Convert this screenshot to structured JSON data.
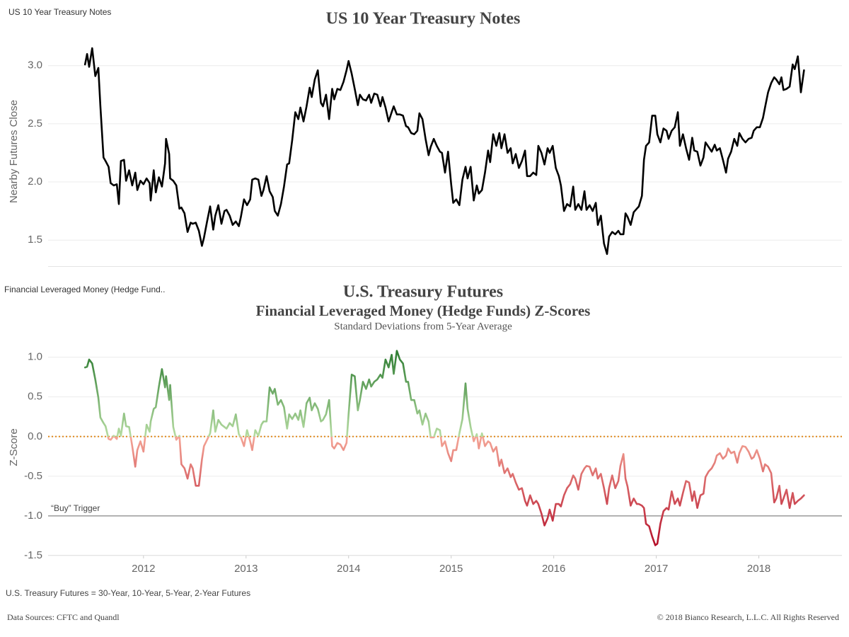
{
  "chart_data": [
    {
      "type": "line",
      "sheet_name": "US 10 Year Treasury Notes",
      "title": "US 10 Year Treasury Notes",
      "ylabel": "Nearby Futures Close",
      "color": "#000000",
      "grid": true,
      "xlim": [
        2011.07,
        2018.81
      ],
      "ylim": [
        1.27,
        3.26
      ],
      "yticks": [
        1.5,
        {
          "value": 2,
          "label": "2.0"
        },
        2.5,
        {
          "value": 3,
          "label": "3.0"
        }
      ],
      "x": [
        2011.43,
        2011.45,
        2011.47,
        2011.5,
        2011.53,
        2011.56,
        2011.58,
        2011.61,
        2011.63,
        2011.66,
        2011.68,
        2011.71,
        2011.74,
        2011.76,
        2011.78,
        2011.81,
        2011.83,
        2011.86,
        2011.89,
        2011.92,
        2011.94,
        2011.97,
        2012.0,
        2012.03,
        2012.06,
        2012.07,
        2012.1,
        2012.12,
        2012.15,
        2012.18,
        2012.21,
        2012.22,
        2012.25,
        2012.26,
        2012.29,
        2012.32,
        2012.35,
        2012.37,
        2012.4,
        2012.43,
        2012.46,
        2012.48,
        2012.51,
        2012.54,
        2012.57,
        2012.59,
        2012.62,
        2012.65,
        2012.68,
        2012.7,
        2012.73,
        2012.76,
        2012.79,
        2012.81,
        2012.84,
        2012.87,
        2012.9,
        2012.93,
        2012.95,
        2012.98,
        2013.01,
        2013.04,
        2013.06,
        2013.09,
        2013.12,
        2013.15,
        2013.17,
        2013.2,
        2013.23,
        2013.26,
        2013.28,
        2013.31,
        2013.34,
        2013.37,
        2013.4,
        2013.42,
        2013.45,
        2013.48,
        2013.51,
        2013.53,
        2013.56,
        2013.59,
        2013.62,
        2013.64,
        2013.67,
        2013.7,
        2013.73,
        2013.75,
        2013.78,
        2013.81,
        2013.84,
        2013.86,
        2013.89,
        2013.92,
        2013.95,
        2013.98,
        2014.0,
        2014.03,
        2014.06,
        2014.09,
        2014.11,
        2014.14,
        2014.17,
        2014.2,
        2014.22,
        2014.25,
        2014.28,
        2014.31,
        2014.33,
        2014.36,
        2014.39,
        2014.42,
        2014.44,
        2014.47,
        2014.5,
        2014.53,
        2014.56,
        2014.58,
        2014.61,
        2014.64,
        2014.67,
        2014.69,
        2014.72,
        2014.75,
        2014.78,
        2014.8,
        2014.83,
        2014.86,
        2014.89,
        2014.91,
        2014.94,
        2014.97,
        2015.0,
        2015.02,
        2015.05,
        2015.08,
        2015.11,
        2015.14,
        2015.16,
        2015.19,
        2015.22,
        2015.25,
        2015.27,
        2015.3,
        2015.33,
        2015.36,
        2015.38,
        2015.41,
        2015.44,
        2015.47,
        2015.49,
        2015.52,
        2015.55,
        2015.58,
        2015.6,
        2015.63,
        2015.66,
        2015.69,
        2015.72,
        2015.74,
        2015.77,
        2015.8,
        2015.83,
        2015.85,
        2015.88,
        2015.91,
        2015.94,
        2015.96,
        2015.99,
        2016.02,
        2016.05,
        2016.07,
        2016.1,
        2016.13,
        2016.16,
        2016.19,
        2016.21,
        2016.24,
        2016.27,
        2016.3,
        2016.32,
        2016.35,
        2016.38,
        2016.41,
        2016.43,
        2016.46,
        2016.49,
        2016.52,
        2016.54,
        2016.57,
        2016.6,
        2016.63,
        2016.65,
        2016.68,
        2016.7,
        2016.72,
        2016.75,
        2016.78,
        2016.81,
        2016.83,
        2016.86,
        2016.88,
        2016.9,
        2016.93,
        2016.96,
        2016.99,
        2017.01,
        2017.04,
        2017.07,
        2017.1,
        2017.12,
        2017.15,
        2017.18,
        2017.21,
        2017.23,
        2017.26,
        2017.29,
        2017.32,
        2017.35,
        2017.37,
        2017.4,
        2017.43,
        2017.46,
        2017.48,
        2017.51,
        2017.54,
        2017.57,
        2017.59,
        2017.62,
        2017.65,
        2017.68,
        2017.7,
        2017.73,
        2017.76,
        2017.79,
        2017.81,
        2017.84,
        2017.87,
        2017.9,
        2017.93,
        2017.95,
        2017.98,
        2018.01,
        2018.04,
        2018.06,
        2018.09,
        2018.12,
        2018.15,
        2018.17,
        2018.2,
        2018.22,
        2018.24,
        2018.27,
        2018.3,
        2018.33,
        2018.35,
        2018.38,
        2018.41,
        2018.44
      ],
      "values": [
        3.01,
        3.1,
        2.99,
        3.15,
        2.91,
        2.98,
        2.65,
        2.21,
        2.18,
        2.13,
        1.99,
        1.97,
        1.98,
        1.81,
        2.18,
        2.19,
        2.01,
        2.1,
        1.97,
        2.08,
        1.93,
        2.01,
        1.98,
        2.03,
        1.99,
        1.84,
        2.1,
        1.91,
        2.04,
        1.96,
        2.16,
        2.37,
        2.24,
        2.03,
        2.01,
        1.97,
        1.77,
        1.78,
        1.73,
        1.57,
        1.65,
        1.64,
        1.65,
        1.58,
        1.45,
        1.52,
        1.66,
        1.79,
        1.59,
        1.71,
        1.8,
        1.64,
        1.75,
        1.76,
        1.71,
        1.63,
        1.66,
        1.62,
        1.7,
        1.85,
        1.8,
        1.85,
        2.02,
        2.03,
        2.02,
        1.88,
        1.93,
        2.05,
        1.92,
        1.87,
        1.75,
        1.71,
        1.81,
        1.96,
        2.15,
        2.16,
        2.36,
        2.6,
        2.54,
        2.64,
        2.52,
        2.65,
        2.81,
        2.73,
        2.88,
        2.96,
        2.68,
        2.65,
        2.75,
        2.54,
        2.8,
        2.71,
        2.8,
        2.79,
        2.86,
        2.96,
        3.04,
        2.93,
        2.8,
        2.66,
        2.75,
        2.71,
        2.7,
        2.75,
        2.68,
        2.76,
        2.75,
        2.65,
        2.73,
        2.64,
        2.52,
        2.6,
        2.65,
        2.58,
        2.58,
        2.57,
        2.48,
        2.47,
        2.42,
        2.41,
        2.44,
        2.59,
        2.54,
        2.37,
        2.23,
        2.3,
        2.37,
        2.31,
        2.26,
        2.25,
        2.08,
        2.26,
        1.98,
        1.82,
        1.85,
        1.8,
        2.02,
        2.13,
        2.03,
        2.13,
        1.84,
        1.97,
        1.9,
        1.93,
        2.08,
        2.27,
        2.17,
        2.41,
        2.31,
        2.42,
        2.29,
        2.41,
        2.25,
        2.29,
        2.16,
        2.24,
        2.12,
        2.18,
        2.27,
        2.05,
        2.05,
        2.08,
        2.06,
        2.31,
        2.25,
        2.15,
        2.29,
        2.25,
        2.31,
        2.12,
        2.05,
        1.97,
        1.75,
        1.81,
        1.79,
        1.96,
        1.76,
        1.81,
        1.76,
        1.92,
        1.76,
        1.8,
        1.75,
        1.82,
        1.63,
        1.71,
        1.47,
        1.38,
        1.53,
        1.57,
        1.55,
        1.58,
        1.55,
        1.55,
        1.73,
        1.7,
        1.63,
        1.74,
        1.77,
        1.79,
        1.88,
        2.19,
        2.31,
        2.34,
        2.57,
        2.57,
        2.41,
        2.34,
        2.46,
        2.44,
        2.37,
        2.44,
        2.47,
        2.6,
        2.31,
        2.41,
        2.29,
        2.19,
        2.38,
        2.27,
        2.26,
        2.14,
        2.21,
        2.34,
        2.3,
        2.26,
        2.32,
        2.27,
        2.29,
        2.19,
        2.08,
        2.2,
        2.26,
        2.37,
        2.31,
        2.42,
        2.37,
        2.34,
        2.37,
        2.38,
        2.44,
        2.47,
        2.47,
        2.55,
        2.64,
        2.77,
        2.85,
        2.9,
        2.88,
        2.84,
        2.9,
        2.79,
        2.8,
        2.82,
        3.01,
        2.97,
        3.08,
        2.77,
        2.96
      ]
    },
    {
      "type": "line",
      "sheet_name": "Financial Leveraged Money (Hedge Fund..",
      "title": "U.S. Treasury Futures",
      "subtitle": "Financial Leveraged Money (Hedge Funds) Z-Scores",
      "description": "Standard Deviations from 5-Year Average",
      "ylabel": "Z-Score",
      "grid": true,
      "color_scale": [
        "#2e7d32",
        "#b6dca2",
        "#f4a596",
        "#b5102a"
      ],
      "xlim": [
        2011.07,
        2018.81
      ],
      "ylim": [
        -1.5,
        1.22
      ],
      "xticks": [
        2012,
        2013,
        2014,
        2015,
        2016,
        2017,
        2018
      ],
      "yticks": [
        -1.5,
        {
          "value": -1,
          "label": "-1.0"
        },
        -0.5,
        {
          "value": 0,
          "label": "0.0"
        },
        0.5,
        {
          "value": 1,
          "label": "1.0"
        }
      ],
      "reference_lines": [
        {
          "value": 0,
          "color": "#e08a1e",
          "style": "dotted"
        },
        {
          "value": -1,
          "color": "#9a9a9a",
          "style": "solid",
          "label": "“Buy” Trigger"
        }
      ],
      "x": [
        2011.43,
        2011.45,
        2011.47,
        2011.5,
        2011.53,
        2011.56,
        2011.58,
        2011.61,
        2011.63,
        2011.66,
        2011.68,
        2011.71,
        2011.74,
        2011.76,
        2011.78,
        2011.81,
        2011.83,
        2011.86,
        2011.89,
        2011.92,
        2011.94,
        2011.97,
        2012.0,
        2012.03,
        2012.06,
        2012.07,
        2012.1,
        2012.12,
        2012.15,
        2012.18,
        2012.21,
        2012.22,
        2012.25,
        2012.26,
        2012.29,
        2012.32,
        2012.35,
        2012.37,
        2012.4,
        2012.43,
        2012.46,
        2012.48,
        2012.51,
        2012.54,
        2012.57,
        2012.59,
        2012.62,
        2012.65,
        2012.68,
        2012.7,
        2012.73,
        2012.76,
        2012.79,
        2012.81,
        2012.84,
        2012.87,
        2012.9,
        2012.93,
        2012.95,
        2012.98,
        2013.01,
        2013.04,
        2013.06,
        2013.09,
        2013.12,
        2013.15,
        2013.17,
        2013.2,
        2013.23,
        2013.26,
        2013.28,
        2013.31,
        2013.34,
        2013.37,
        2013.4,
        2013.42,
        2013.45,
        2013.48,
        2013.51,
        2013.53,
        2013.56,
        2013.59,
        2013.62,
        2013.64,
        2013.67,
        2013.7,
        2013.73,
        2013.75,
        2013.78,
        2013.81,
        2013.84,
        2013.86,
        2013.89,
        2013.92,
        2013.95,
        2013.98,
        2014.0,
        2014.03,
        2014.06,
        2014.09,
        2014.11,
        2014.14,
        2014.17,
        2014.2,
        2014.22,
        2014.25,
        2014.28,
        2014.31,
        2014.33,
        2014.36,
        2014.39,
        2014.42,
        2014.44,
        2014.47,
        2014.5,
        2014.53,
        2014.56,
        2014.58,
        2014.61,
        2014.64,
        2014.67,
        2014.69,
        2014.72,
        2014.75,
        2014.78,
        2014.8,
        2014.83,
        2014.86,
        2014.89,
        2014.91,
        2014.94,
        2014.97,
        2015.0,
        2015.02,
        2015.05,
        2015.08,
        2015.11,
        2015.14,
        2015.16,
        2015.19,
        2015.22,
        2015.25,
        2015.27,
        2015.3,
        2015.33,
        2015.36,
        2015.38,
        2015.41,
        2015.44,
        2015.47,
        2015.49,
        2015.52,
        2015.55,
        2015.58,
        2015.6,
        2015.63,
        2015.66,
        2015.69,
        2015.72,
        2015.74,
        2015.77,
        2015.8,
        2015.83,
        2015.85,
        2015.88,
        2015.91,
        2015.94,
        2015.96,
        2015.99,
        2016.02,
        2016.05,
        2016.07,
        2016.1,
        2016.13,
        2016.16,
        2016.19,
        2016.21,
        2016.24,
        2016.27,
        2016.3,
        2016.32,
        2016.35,
        2016.38,
        2016.41,
        2016.43,
        2016.46,
        2016.49,
        2016.52,
        2016.54,
        2016.57,
        2016.6,
        2016.63,
        2016.65,
        2016.68,
        2016.7,
        2016.72,
        2016.75,
        2016.78,
        2016.81,
        2016.83,
        2016.86,
        2016.88,
        2016.9,
        2016.93,
        2016.96,
        2016.99,
        2017.01,
        2017.04,
        2017.07,
        2017.1,
        2017.12,
        2017.15,
        2017.18,
        2017.21,
        2017.23,
        2017.26,
        2017.29,
        2017.32,
        2017.35,
        2017.37,
        2017.4,
        2017.43,
        2017.46,
        2017.48,
        2017.51,
        2017.54,
        2017.57,
        2017.59,
        2017.62,
        2017.65,
        2017.68,
        2017.7,
        2017.73,
        2017.76,
        2017.79,
        2017.81,
        2017.84,
        2017.87,
        2017.9,
        2017.93,
        2017.95,
        2017.98,
        2018.01,
        2018.04,
        2018.06,
        2018.09,
        2018.12,
        2018.15,
        2018.17,
        2018.2,
        2018.22,
        2018.24,
        2018.27,
        2018.3,
        2018.33,
        2018.35,
        2018.38,
        2018.41,
        2018.44
      ],
      "values": [
        0.87,
        0.88,
        0.97,
        0.92,
        0.72,
        0.49,
        0.24,
        0.17,
        0.13,
        -0.03,
        -0.04,
        0.01,
        -0.03,
        0.1,
        0.01,
        0.29,
        0.13,
        0.12,
        -0.12,
        -0.38,
        -0.17,
        -0.06,
        -0.19,
        0.15,
        0.06,
        0.19,
        0.35,
        0.37,
        0.63,
        0.85,
        0.62,
        0.76,
        0.46,
        0.65,
        0.12,
        -0.04,
        0.01,
        -0.35,
        -0.4,
        -0.53,
        -0.35,
        -0.4,
        -0.62,
        -0.62,
        -0.29,
        -0.12,
        -0.04,
        0.04,
        0.33,
        0.06,
        0.21,
        0.15,
        0.12,
        0.1,
        0.17,
        0.13,
        0.28,
        0.03,
        -0.01,
        -0.12,
        0.08,
        -0.06,
        -0.17,
        0.08,
        0.01,
        0.15,
        0.19,
        0.19,
        0.62,
        0.54,
        0.6,
        0.4,
        0.46,
        0.37,
        0.1,
        0.28,
        0.22,
        0.29,
        0.21,
        0.33,
        0.12,
        0.42,
        0.49,
        0.33,
        0.42,
        0.35,
        0.19,
        0.21,
        0.28,
        0.46,
        -0.12,
        -0.15,
        -0.08,
        -0.1,
        -0.17,
        -0.08,
        0.28,
        0.78,
        0.76,
        0.33,
        0.46,
        0.69,
        0.6,
        0.72,
        0.63,
        0.69,
        0.72,
        0.78,
        0.74,
        0.97,
        0.87,
        1.03,
        0.79,
        1.08,
        0.97,
        0.92,
        0.69,
        0.69,
        0.46,
        0.46,
        0.29,
        0.33,
        0.15,
        0.29,
        0.19,
        -0.01,
        -0.01,
        0.1,
        0.08,
        -0.12,
        -0.06,
        -0.21,
        -0.31,
        -0.17,
        -0.17,
        0.04,
        0.22,
        0.67,
        0.35,
        0.12,
        -0.06,
        0.03,
        -0.15,
        0.04,
        -0.12,
        -0.06,
        -0.08,
        -0.19,
        -0.13,
        -0.37,
        -0.29,
        -0.46,
        -0.4,
        -0.51,
        -0.47,
        -0.58,
        -0.67,
        -0.65,
        -0.81,
        -0.87,
        -0.74,
        -0.85,
        -0.81,
        -0.85,
        -0.97,
        -1.12,
        -1.03,
        -0.92,
        -1.06,
        -0.85,
        -0.85,
        -0.88,
        -0.74,
        -0.65,
        -0.6,
        -0.49,
        -0.53,
        -0.67,
        -0.47,
        -0.4,
        -0.37,
        -0.38,
        -0.49,
        -0.4,
        -0.53,
        -0.47,
        -0.65,
        -0.85,
        -0.65,
        -0.49,
        -0.65,
        -0.56,
        -0.37,
        -0.22,
        -0.53,
        -0.63,
        -0.87,
        -0.78,
        -0.85,
        -0.85,
        -0.87,
        -0.9,
        -1.1,
        -1.13,
        -1.26,
        -1.37,
        -1.35,
        -1.1,
        -0.94,
        -0.9,
        -0.92,
        -0.69,
        -0.85,
        -0.78,
        -0.87,
        -0.71,
        -0.56,
        -0.58,
        -0.81,
        -0.69,
        -0.9,
        -0.74,
        -0.72,
        -0.51,
        -0.44,
        -0.4,
        -0.33,
        -0.24,
        -0.21,
        -0.28,
        -0.24,
        -0.15,
        -0.21,
        -0.19,
        -0.33,
        -0.21,
        -0.12,
        -0.13,
        -0.19,
        -0.28,
        -0.26,
        -0.17,
        -0.28,
        -0.44,
        -0.35,
        -0.38,
        -0.46,
        -0.83,
        -0.78,
        -0.62,
        -0.85,
        -0.78,
        -0.67,
        -0.9,
        -0.71,
        -0.85,
        -0.81,
        -0.78,
        -0.74
      ]
    }
  ],
  "footnote": "U.S. Treasury Futures = 30-Year, 10-Year, 5-Year, 2-Year Futures",
  "sources": "Data Sources: CFTC and Quandl",
  "copyright": "© 2018 Bianco Research, L.L.C. All Rights Reserved"
}
